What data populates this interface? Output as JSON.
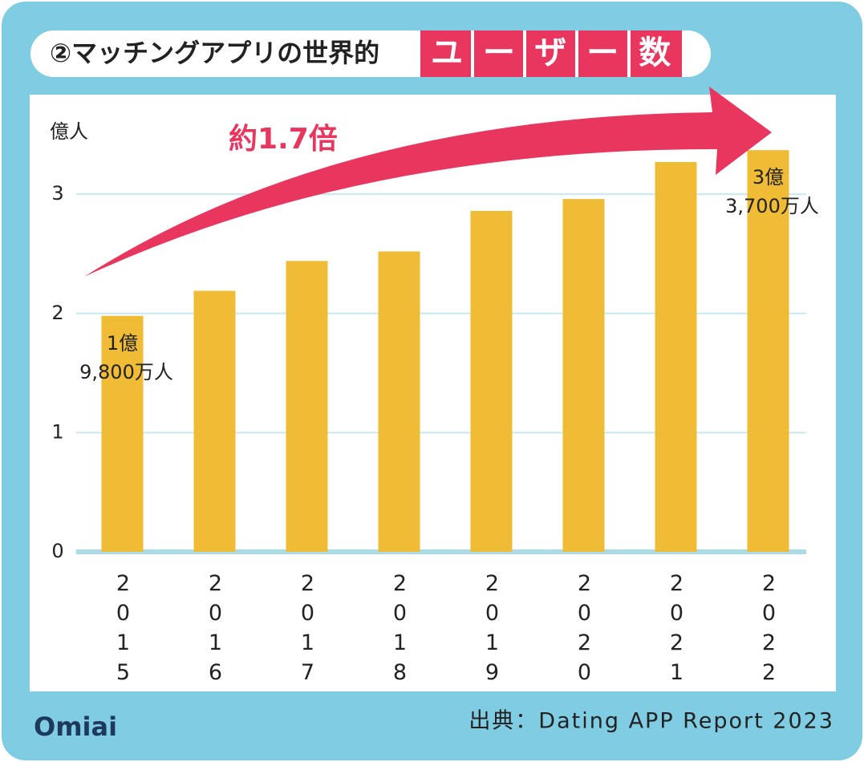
{
  "chart_data": {
    "type": "bar",
    "title": "②マッチングアプリの世界的",
    "title_highlight": "ユーザー数",
    "y_label": "億人",
    "annotation": "約1.7倍",
    "source": "出典：Dating APP Report 2023",
    "brand": "Omiai",
    "categories": [
      "2015",
      "2016",
      "2017",
      "2018",
      "2019",
      "2020",
      "2021",
      "2022"
    ],
    "values": [
      1.98,
      2.19,
      2.44,
      2.52,
      2.86,
      2.96,
      3.27,
      3.37
    ],
    "value_labels": [
      [
        "1億",
        "9,800万人"
      ],
      null,
      null,
      null,
      null,
      null,
      null,
      [
        "3億",
        "3,700万人"
      ]
    ],
    "color": "#f0bb35",
    "ylim": [
      0,
      3.6
    ],
    "yticks": [
      0,
      1,
      2,
      3
    ],
    "grid": true
  }
}
